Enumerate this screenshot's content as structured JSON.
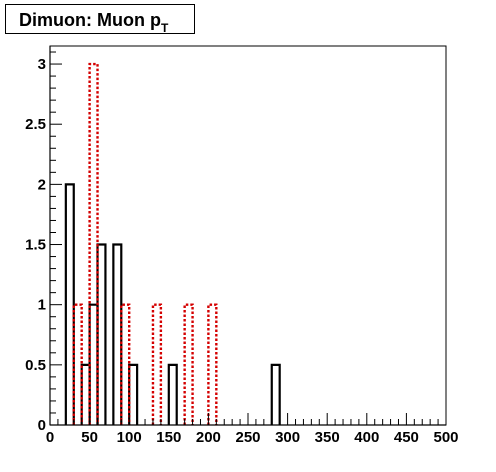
{
  "title": {
    "main": "Dimuon: Muon p",
    "subscript": "T"
  },
  "colors": {
    "series1": "#000000",
    "series2": "#d40000",
    "axis": "#000000"
  },
  "chart_data": {
    "type": "histogram",
    "title": "Dimuon: Muon pT",
    "xlabel": "",
    "ylabel": "",
    "xlim": [
      0,
      500
    ],
    "ylim": [
      0,
      3.15
    ],
    "bin_width": 10,
    "grid": false,
    "x_ticks": [
      0,
      50,
      100,
      150,
      200,
      250,
      300,
      350,
      400,
      450,
      500
    ],
    "x_tick_labels": [
      "0",
      "50",
      "100",
      "150",
      "200",
      "250",
      "300",
      "350",
      "400",
      "450",
      "500"
    ],
    "y_ticks": [
      0,
      0.5,
      1,
      1.5,
      2,
      2.5,
      3
    ],
    "y_tick_labels": [
      "0",
      "0.5",
      "1",
      "1.5",
      "2",
      "2.5",
      "3"
    ],
    "series": [
      {
        "style": "solid",
        "color": "#000000",
        "bins": [
          {
            "x0": 20,
            "x1": 30,
            "y": 2.0
          },
          {
            "x0": 40,
            "x1": 50,
            "y": 0.5
          },
          {
            "x0": 50,
            "x1": 60,
            "y": 1.0
          },
          {
            "x0": 60,
            "x1": 70,
            "y": 1.5
          },
          {
            "x0": 80,
            "x1": 90,
            "y": 1.5
          },
          {
            "x0": 100,
            "x1": 110,
            "y": 0.5
          },
          {
            "x0": 150,
            "x1": 160,
            "y": 0.5
          },
          {
            "x0": 280,
            "x1": 290,
            "y": 0.5
          }
        ]
      },
      {
        "style": "dashed",
        "color": "#d40000",
        "bins": [
          {
            "x0": 30,
            "x1": 40,
            "y": 1.0
          },
          {
            "x0": 50,
            "x1": 60,
            "y": 3.0
          },
          {
            "x0": 90,
            "x1": 100,
            "y": 1.0
          },
          {
            "x0": 130,
            "x1": 140,
            "y": 1.0
          },
          {
            "x0": 170,
            "x1": 180,
            "y": 1.0
          },
          {
            "x0": 200,
            "x1": 210,
            "y": 1.0
          }
        ]
      }
    ]
  }
}
